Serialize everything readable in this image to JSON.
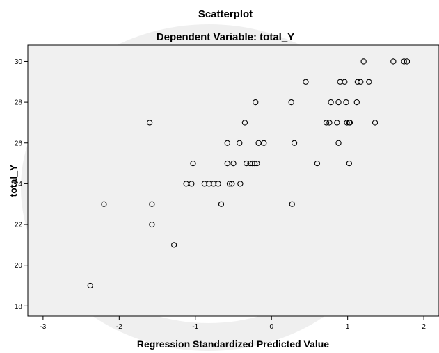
{
  "chart_data": {
    "type": "scatter",
    "title": "Scatterplot",
    "subtitle": "Dependent Variable: total_Y",
    "xlabel": "Regression Standardized Predicted Value",
    "ylabel": "total_Y",
    "xlim": [
      -3.2,
      2.2
    ],
    "ylim": [
      17.5,
      30.8
    ],
    "xticks": [
      -3,
      -2,
      -1,
      0,
      1,
      2
    ],
    "yticks": [
      18,
      20,
      22,
      24,
      26,
      28,
      30
    ],
    "xtick_labels": [
      "-3",
      "-2",
      "-1",
      "0",
      "1",
      "2"
    ],
    "ytick_labels": [
      "18",
      "20",
      "22",
      "24",
      "26",
      "28",
      "30"
    ],
    "grid": false,
    "points": [
      {
        "x": -2.38,
        "y": 19
      },
      {
        "x": -2.2,
        "y": 23
      },
      {
        "x": -1.6,
        "y": 27
      },
      {
        "x": -1.57,
        "y": 23
      },
      {
        "x": -1.57,
        "y": 22
      },
      {
        "x": -1.28,
        "y": 21
      },
      {
        "x": -1.12,
        "y": 24
      },
      {
        "x": -1.05,
        "y": 24
      },
      {
        "x": -1.03,
        "y": 25
      },
      {
        "x": -0.88,
        "y": 24
      },
      {
        "x": -0.82,
        "y": 24
      },
      {
        "x": -0.76,
        "y": 24
      },
      {
        "x": -0.7,
        "y": 24
      },
      {
        "x": -0.66,
        "y": 23
      },
      {
        "x": -0.58,
        "y": 26
      },
      {
        "x": -0.58,
        "y": 25
      },
      {
        "x": -0.55,
        "y": 24
      },
      {
        "x": -0.52,
        "y": 24
      },
      {
        "x": -0.5,
        "y": 25
      },
      {
        "x": -0.42,
        "y": 26
      },
      {
        "x": -0.41,
        "y": 24
      },
      {
        "x": -0.35,
        "y": 27
      },
      {
        "x": -0.33,
        "y": 25
      },
      {
        "x": -0.28,
        "y": 25
      },
      {
        "x": -0.25,
        "y": 25
      },
      {
        "x": -0.22,
        "y": 25
      },
      {
        "x": -0.19,
        "y": 25
      },
      {
        "x": -0.21,
        "y": 28
      },
      {
        "x": -0.17,
        "y": 26
      },
      {
        "x": -0.1,
        "y": 26
      },
      {
        "x": 0.26,
        "y": 28
      },
      {
        "x": 0.27,
        "y": 23
      },
      {
        "x": 0.3,
        "y": 26
      },
      {
        "x": 0.45,
        "y": 29
      },
      {
        "x": 0.6,
        "y": 25
      },
      {
        "x": 0.72,
        "y": 27
      },
      {
        "x": 0.76,
        "y": 27
      },
      {
        "x": 0.78,
        "y": 28
      },
      {
        "x": 0.86,
        "y": 27
      },
      {
        "x": 0.88,
        "y": 26
      },
      {
        "x": 0.88,
        "y": 28
      },
      {
        "x": 0.9,
        "y": 29
      },
      {
        "x": 0.96,
        "y": 29
      },
      {
        "x": 0.98,
        "y": 28
      },
      {
        "x": 0.99,
        "y": 27
      },
      {
        "x": 1.02,
        "y": 27
      },
      {
        "x": 1.03,
        "y": 27
      },
      {
        "x": 1.02,
        "y": 25
      },
      {
        "x": 1.12,
        "y": 28
      },
      {
        "x": 1.13,
        "y": 29
      },
      {
        "x": 1.17,
        "y": 29
      },
      {
        "x": 1.21,
        "y": 30
      },
      {
        "x": 1.28,
        "y": 29
      },
      {
        "x": 1.36,
        "y": 27
      },
      {
        "x": 1.6,
        "y": 30
      },
      {
        "x": 1.74,
        "y": 30
      },
      {
        "x": 1.78,
        "y": 30
      }
    ]
  }
}
